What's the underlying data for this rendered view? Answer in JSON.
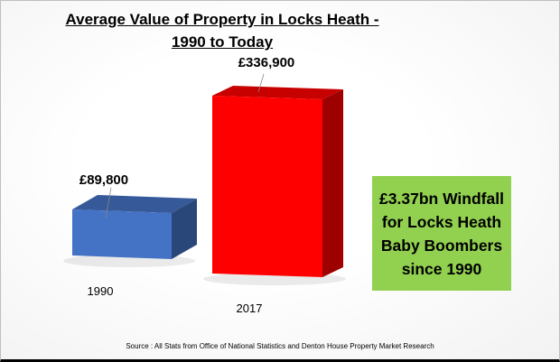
{
  "chart_data": {
    "type": "bar",
    "title": "Average Value of Property in Locks Heath - 1990 to Today",
    "title_lines": [
      "Average Value of Property in Locks Heath -",
      "1990 to Today"
    ],
    "categories": [
      "1990",
      "2017"
    ],
    "values": [
      89800,
      336900
    ],
    "data_labels": [
      "£89,800",
      "£336,900"
    ],
    "colors": [
      "#4472c4",
      "#ff0000"
    ],
    "xlabel": "",
    "ylabel": "",
    "ylim": [
      0,
      340000
    ],
    "grid": false,
    "style": "3d-column"
  },
  "callout": {
    "lines": [
      "£3.37bn Windfall",
      "for Locks Heath",
      "Baby Boombers",
      "since 1990"
    ],
    "color": "#92d050"
  },
  "source": "Source : All Stats from Office of National Statistics  and Denton House Property Market Research"
}
